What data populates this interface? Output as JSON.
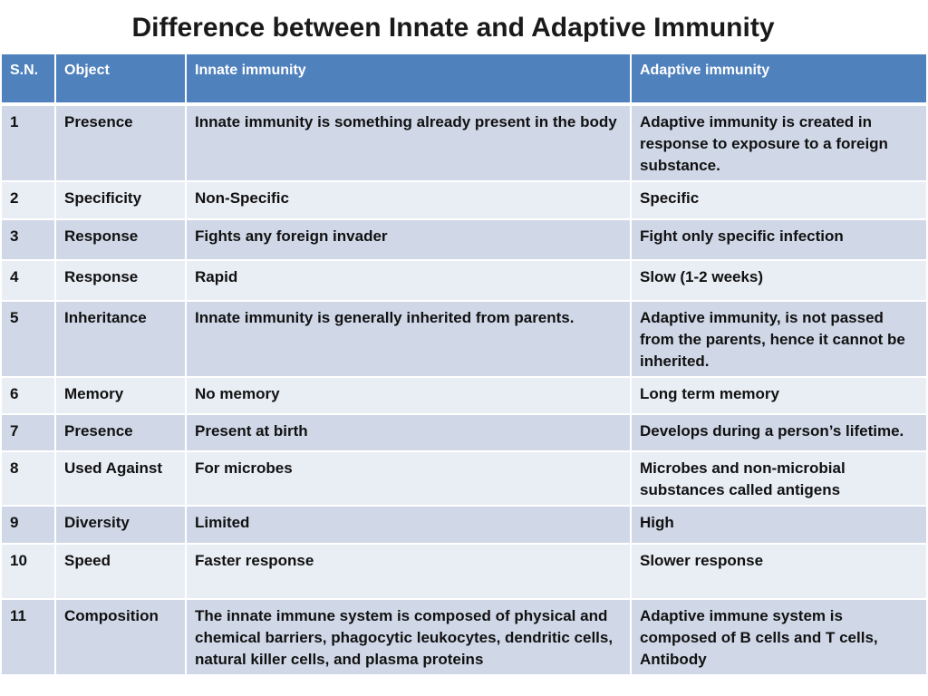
{
  "title": "Difference between Innate and Adaptive Immunity",
  "colors": {
    "header_bg": "#4f81bd",
    "row_odd_bg": "#d0d8e8",
    "row_even_bg": "#e9edf4",
    "header_text": "#ffffff"
  },
  "table": {
    "headers": [
      "S.N.",
      "Object",
      "Innate immunity",
      "Adaptive immunity"
    ],
    "rows": [
      [
        "1",
        "Presence",
        "Innate immunity is something already present in the body",
        "Adaptive immunity is created in response to exposure to a foreign substance."
      ],
      [
        "2",
        "Specificity",
        "Non-Specific",
        "Specific"
      ],
      [
        "3",
        "Response",
        "Fights any foreign invader",
        "Fight only specific infection"
      ],
      [
        "4",
        "Response",
        "Rapid",
        "Slow (1-2 weeks)"
      ],
      [
        "5",
        "Inheritance",
        "Innate immunity is generally inherited from parents.",
        "Adaptive immunity, is not passed from the parents, hence it cannot be inherited."
      ],
      [
        "6",
        "Memory",
        "No memory",
        "Long term memory"
      ],
      [
        "7",
        "Presence",
        "Present at birth",
        "Develops during a person’s lifetime."
      ],
      [
        "8",
        "Used Against",
        "For microbes",
        "Microbes and non-microbial substances called antigens"
      ],
      [
        "9",
        "Diversity",
        "Limited",
        "High"
      ],
      [
        "10",
        "Speed",
        "Faster response",
        "Slower response"
      ],
      [
        "11",
        "Composition",
        "The innate immune system is composed of physical and chemical barriers, phagocytic leukocytes, dendritic cells, natural killer cells, and plasma proteins",
        "Adaptive immune system is composed of B cells and T cells, Antibody"
      ]
    ]
  }
}
